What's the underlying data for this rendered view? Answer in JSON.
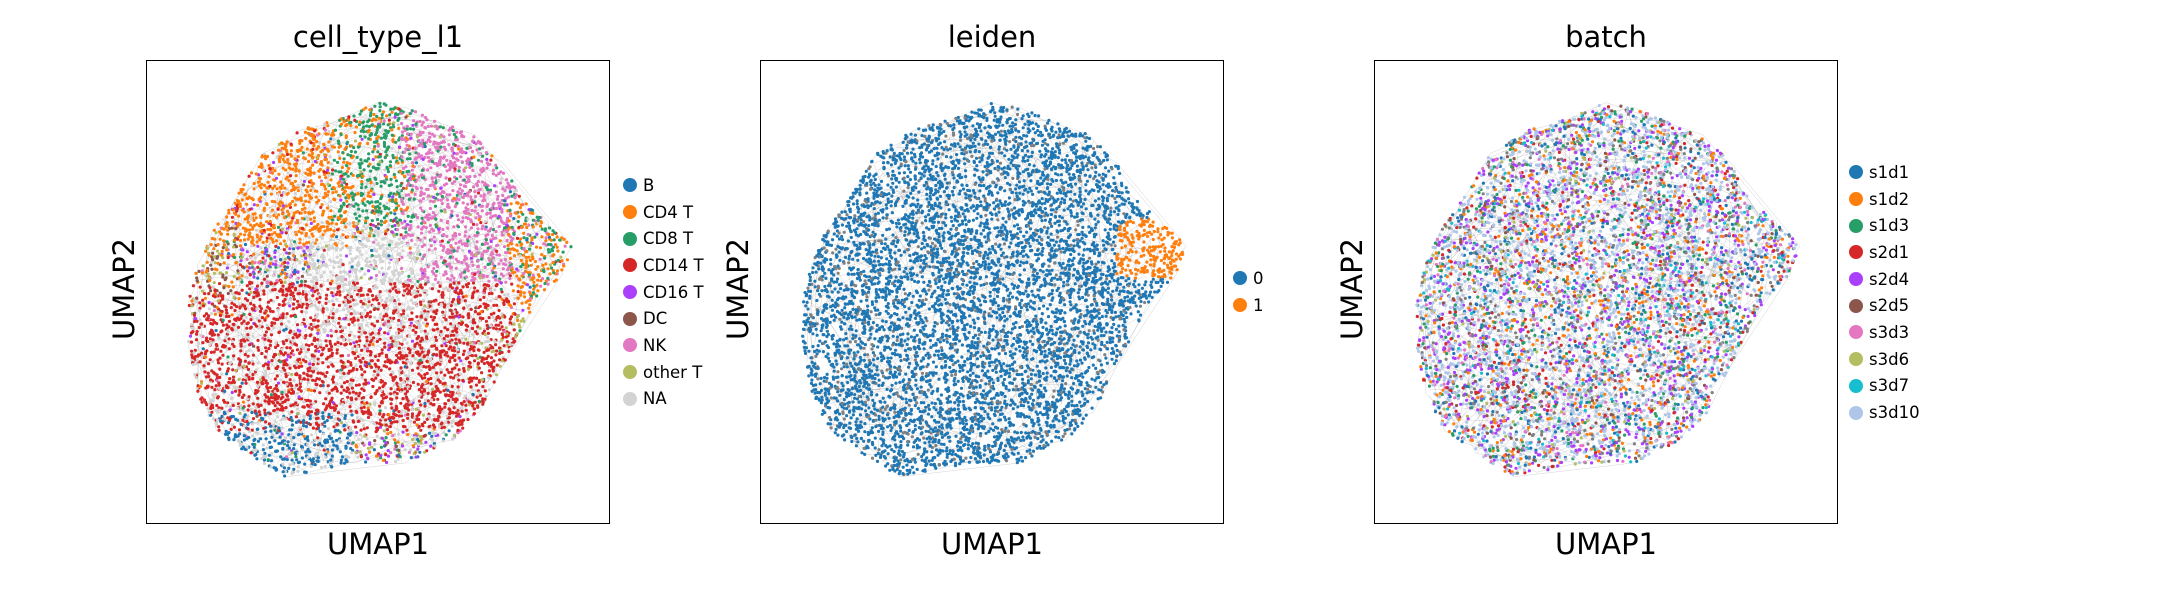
{
  "chart_data": [
    {
      "type": "scatter",
      "title": "cell_type_l1",
      "xlabel": "UMAP1",
      "ylabel": "UMAP2",
      "ticks": "none",
      "legend_position": "right",
      "legend": [
        {
          "label": "B",
          "color": "#1f77b4"
        },
        {
          "label": "CD4 T",
          "color": "#ff7f0e"
        },
        {
          "label": "CD8 T",
          "color": "#279e68"
        },
        {
          "label": "CD14 T",
          "color": "#d62728"
        },
        {
          "label": "CD16 T",
          "color": "#aa40fc"
        },
        {
          "label": "DC",
          "color": "#8c564b"
        },
        {
          "label": "NK",
          "color": "#e377c2"
        },
        {
          "label": "other T",
          "color": "#b5bd61"
        },
        {
          "label": "NA",
          "color": "#d3d3d3"
        }
      ],
      "edges_color": "#808080"
    },
    {
      "type": "scatter",
      "title": "leiden",
      "xlabel": "UMAP1",
      "ylabel": "UMAP2",
      "ticks": "none",
      "legend_position": "right",
      "legend": [
        {
          "label": "0",
          "color": "#1f77b4"
        },
        {
          "label": "1",
          "color": "#ff7f0e"
        }
      ],
      "edges_color": "#808080"
    },
    {
      "type": "scatter",
      "title": "batch",
      "xlabel": "UMAP1",
      "ylabel": "UMAP2",
      "ticks": "none",
      "legend_position": "right",
      "legend": [
        {
          "label": "s1d1",
          "color": "#1f77b4"
        },
        {
          "label": "s1d2",
          "color": "#ff7f0e"
        },
        {
          "label": "s1d3",
          "color": "#279e68"
        },
        {
          "label": "s2d1",
          "color": "#d62728"
        },
        {
          "label": "s2d4",
          "color": "#aa40fc"
        },
        {
          "label": "s2d5",
          "color": "#8c564b"
        },
        {
          "label": "s3d3",
          "color": "#e377c2"
        },
        {
          "label": "s3d6",
          "color": "#b5bd61"
        },
        {
          "label": "s3d7",
          "color": "#17becf"
        },
        {
          "label": "s3d10",
          "color": "#aec7e8"
        }
      ],
      "edges_color": "#808080"
    }
  ]
}
